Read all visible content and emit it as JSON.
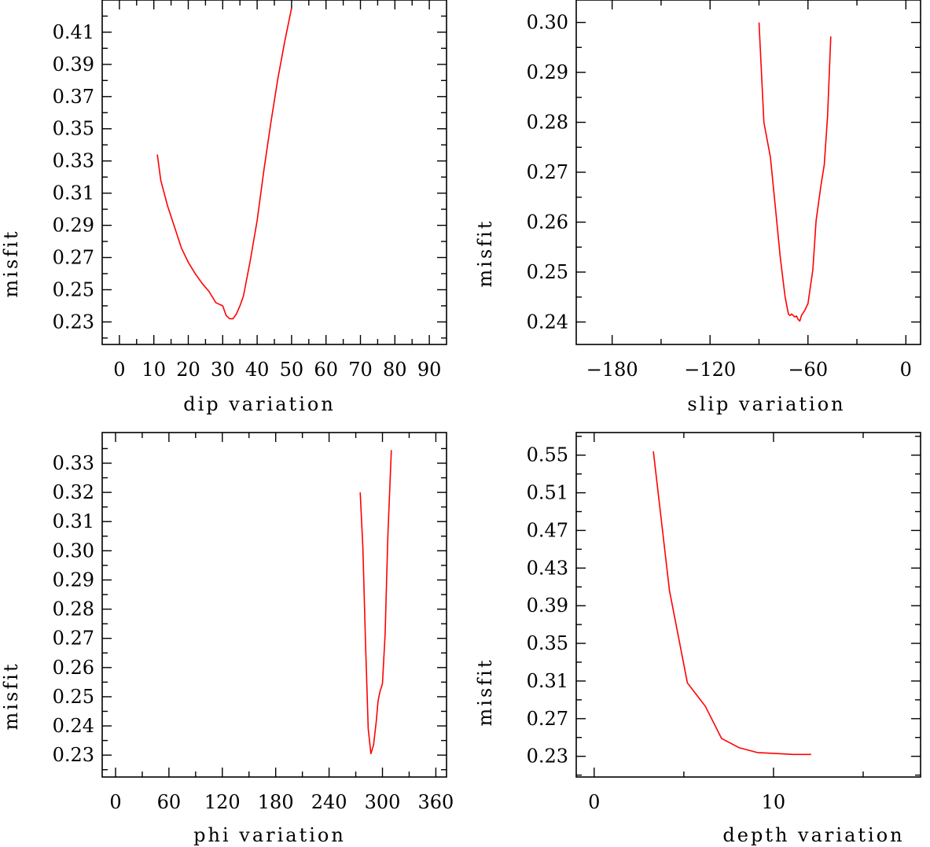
{
  "colors": {
    "line": "#ff0000",
    "axes": "#000000",
    "background": "#ffffff"
  },
  "chart_data": [
    {
      "type": "line",
      "xlabel": "dip      variation",
      "ylabel": "misfit",
      "xlim": [
        -5,
        95
      ],
      "ylim": [
        0.216,
        0.43
      ],
      "x_ticks": [
        0,
        10,
        20,
        30,
        40,
        50,
        60,
        70,
        80,
        90
      ],
      "x_minor_ticks": [
        5,
        15,
        25,
        35,
        45,
        55,
        65,
        75,
        85
      ],
      "y_ticks": [
        0.23,
        0.25,
        0.27,
        0.29,
        0.31,
        0.33,
        0.35,
        0.37,
        0.39,
        0.41
      ],
      "y_tick_labels": [
        "0.23",
        "0.25",
        "0.27",
        "0.29",
        "0.31",
        "0.33",
        "0.35",
        "0.37",
        "0.39",
        "0.41"
      ],
      "y_minor_ticks": [
        0.22,
        0.24,
        0.26,
        0.28,
        0.3,
        0.32,
        0.34,
        0.36,
        0.38,
        0.4,
        0.42
      ],
      "grid": false,
      "series": [
        {
          "x": [
            11,
            12,
            14,
            16,
            18,
            20,
            22,
            24,
            26,
            28,
            30,
            31,
            32,
            33,
            34,
            35,
            36,
            38,
            40,
            42,
            44,
            46,
            48,
            50
          ],
          "y": [
            0.334,
            0.318,
            0.302,
            0.289,
            0.276,
            0.267,
            0.26,
            0.254,
            0.249,
            0.242,
            0.24,
            0.234,
            0.232,
            0.232,
            0.235,
            0.24,
            0.246,
            0.268,
            0.293,
            0.325,
            0.354,
            0.381,
            0.404,
            0.425
          ]
        }
      ]
    },
    {
      "type": "line",
      "xlabel": "slip    variation",
      "ylabel": "misfit",
      "xlim": [
        -202,
        9
      ],
      "ylim": [
        0.2355,
        0.3045
      ],
      "x_ticks": [
        -180,
        -120,
        -60,
        0
      ],
      "x_tick_labels": [
        "−180",
        "−120",
        "−60",
        "0"
      ],
      "x_minor_ticks": [
        -150,
        -90,
        -30
      ],
      "y_ticks": [
        0.24,
        0.25,
        0.26,
        0.27,
        0.28,
        0.29,
        0.3
      ],
      "y_tick_labels": [
        "0.24",
        "0.25",
        "0.26",
        "0.27",
        "0.28",
        "0.29",
        "0.30"
      ],
      "y_minor_ticks": [
        0.245,
        0.255,
        0.265,
        0.275,
        0.285,
        0.295
      ],
      "grid": false,
      "series": [
        {
          "x": [
            -90,
            -87,
            -83,
            -80,
            -77,
            -74,
            -72,
            -71,
            -70,
            -68,
            -67,
            -66,
            -65,
            -64,
            -62,
            -60,
            -57,
            -55,
            -52,
            -50,
            -48,
            -46
          ],
          "y": [
            0.3,
            0.28,
            0.273,
            0.263,
            0.253,
            0.245,
            0.2416,
            0.2413,
            0.2416,
            0.241,
            0.2412,
            0.2405,
            0.2402,
            0.2413,
            0.2423,
            0.2437,
            0.2505,
            0.2603,
            0.2675,
            0.2715,
            0.2812,
            0.2972
          ]
        }
      ]
    },
    {
      "type": "line",
      "xlabel": "phi     variation",
      "ylabel": "misfit",
      "xlim": [
        -15,
        372
      ],
      "ylim": [
        0.2225,
        0.3405
      ],
      "x_ticks": [
        0,
        60,
        120,
        180,
        240,
        300,
        360
      ],
      "x_minor_ticks": [
        30,
        90,
        150,
        210,
        270,
        330
      ],
      "y_ticks": [
        0.23,
        0.24,
        0.25,
        0.26,
        0.27,
        0.28,
        0.29,
        0.3,
        0.31,
        0.32,
        0.33
      ],
      "y_tick_labels": [
        "0.23",
        "0.24",
        "0.25",
        "0.26",
        "0.27",
        "0.28",
        "0.29",
        "0.30",
        "0.31",
        "0.32",
        "0.33"
      ],
      "y_minor_ticks": [
        0.225,
        0.235,
        0.245,
        0.255,
        0.265,
        0.275,
        0.285,
        0.295,
        0.305,
        0.315,
        0.325,
        0.335
      ],
      "grid": false,
      "series": [
        {
          "x": [
            275,
            278,
            281,
            284,
            287,
            290,
            293,
            295,
            297,
            300,
            303,
            306,
            310
          ],
          "y": [
            0.32,
            0.301,
            0.268,
            0.239,
            0.2305,
            0.2335,
            0.2415,
            0.2485,
            0.2515,
            0.2545,
            0.2715,
            0.3045,
            0.3345
          ]
        }
      ]
    },
    {
      "type": "line",
      "xlabel": "depth   variation",
      "ylabel": "misfit",
      "xlim": [
        -1,
        18.2
      ],
      "ylim": [
        0.208,
        0.574
      ],
      "x_ticks": [
        0,
        10
      ],
      "x_minor_ticks": [
        5,
        15
      ],
      "y_ticks": [
        0.23,
        0.27,
        0.31,
        0.35,
        0.39,
        0.43,
        0.47,
        0.51,
        0.55
      ],
      "y_tick_labels": [
        "0.23",
        "0.27",
        "0.31",
        "0.35",
        "0.39",
        "0.43",
        "0.47",
        "0.51",
        "0.55"
      ],
      "y_minor_ticks": [
        0.21,
        0.25,
        0.29,
        0.33,
        0.37,
        0.41,
        0.45,
        0.49,
        0.53,
        0.57
      ],
      "grid": false,
      "series": [
        {
          "x": [
            3.3,
            4.2,
            5.2,
            6.2,
            7.1,
            8.1,
            9.1,
            10.1,
            11.1,
            12.1
          ],
          "y": [
            0.554,
            0.406,
            0.308,
            0.283,
            0.249,
            0.239,
            0.234,
            0.233,
            0.232,
            0.232
          ]
        }
      ]
    }
  ]
}
